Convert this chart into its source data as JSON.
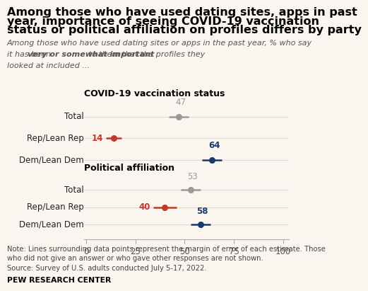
{
  "title_line1": "Among those who have used dating sites, apps in past",
  "title_line2": "year, importance of seeing COVID-19 vaccination",
  "title_line3": "status or political affiliation on profiles differs by party",
  "subtitle_part1": "Among those who have used dating sites or apps in the past year, % who say\nit has been ",
  "subtitle_bold": "very or somewhat important",
  "subtitle_part2": " to them that the profiles they\nlooked at included ...",
  "section1_label": "COVID-19 vaccination status",
  "section2_label": "Political affiliation",
  "categories": [
    "Total",
    "Rep/Lean Rep",
    "Dem/Lean Dem"
  ],
  "section1_values": [
    47,
    14,
    64
  ],
  "section1_errors": [
    5,
    4,
    5
  ],
  "section2_values": [
    53,
    40,
    58
  ],
  "section2_errors": [
    5,
    6,
    5
  ],
  "colors": [
    "#999999",
    "#c0392b",
    "#1a3a6b"
  ],
  "xlim": [
    0,
    100
  ],
  "xticks": [
    0,
    25,
    50,
    75,
    100
  ],
  "note_line1": "Note: Lines surrounding data points represent the margin of error of each estimate. Those",
  "note_line2": "who did not give an answer or who gave other responses are not shown.",
  "note_line3": "Source: Survey of U.S. adults conducted July 5-17, 2022.",
  "source_bold": "PEW RESEARCH CENTER",
  "background_color": "#faf6ef",
  "title_fontsize": 11.5,
  "subtitle_fontsize": 8.0,
  "label_fontsize": 8.5,
  "section_label_fontsize": 9.0,
  "value_fontsize": 8.5,
  "note_fontsize": 7.2,
  "source_fontsize": 7.8
}
